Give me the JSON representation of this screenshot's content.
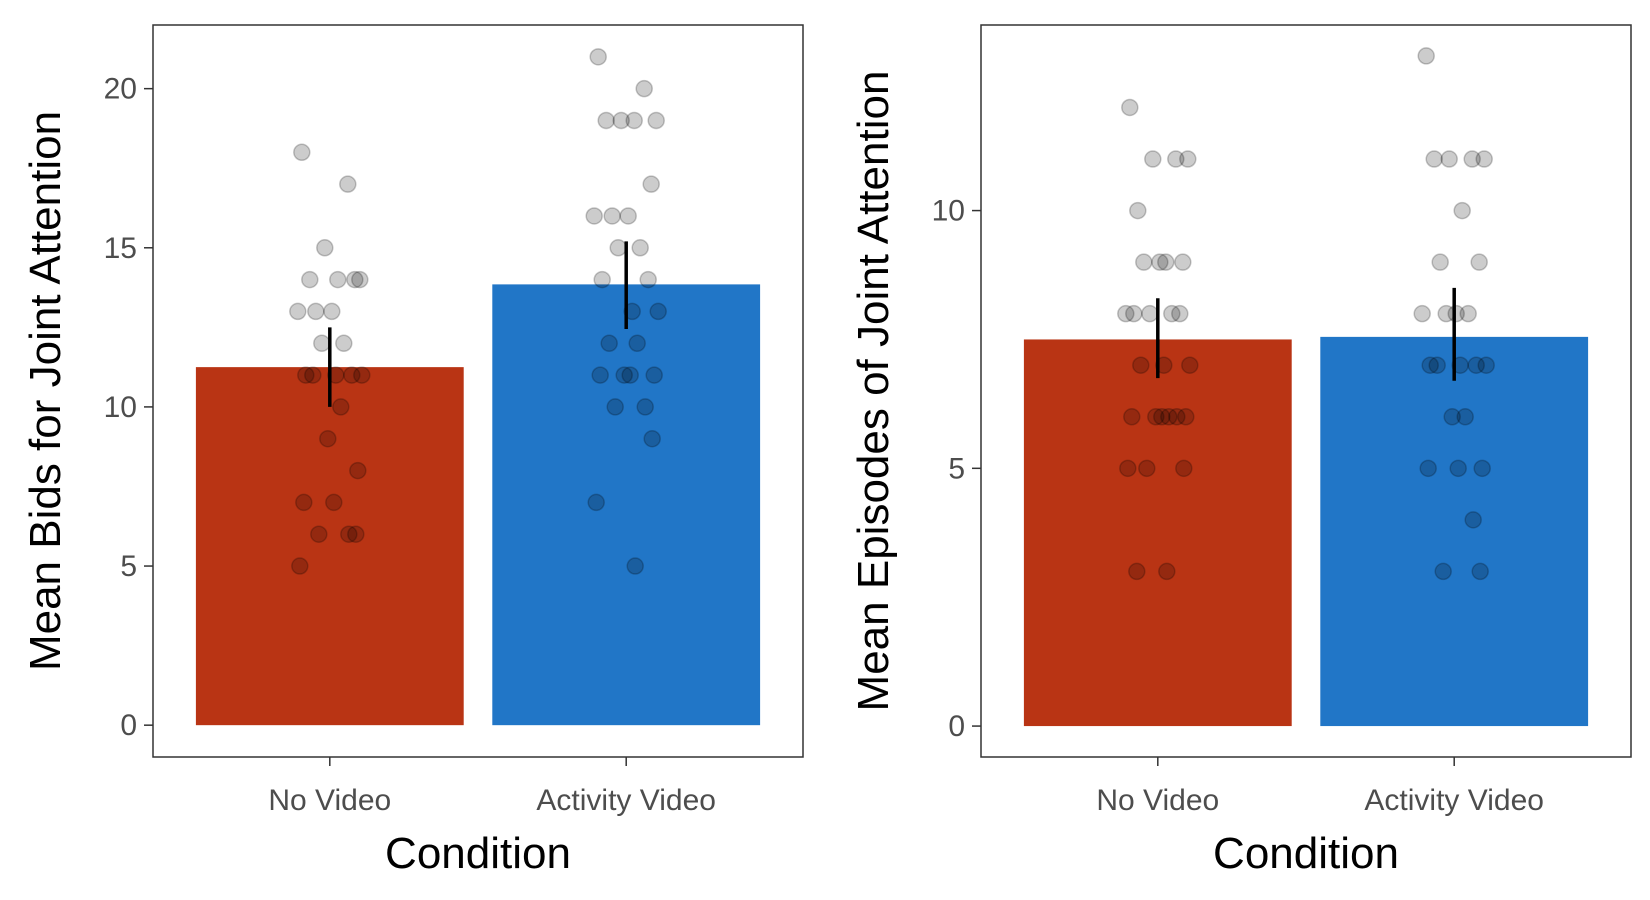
{
  "chart_data": [
    {
      "type": "bar",
      "xlabel": "Condition",
      "ylabel": "Mean Bids for Joint Attention",
      "categories": [
        "No Video",
        "Activity Video"
      ],
      "bar_colors": [
        "#b93414",
        "#2176c7"
      ],
      "values": [
        11.25,
        13.85
      ],
      "error_bars": [
        {
          "low": 10.0,
          "high": 12.5
        },
        {
          "low": 12.45,
          "high": 15.2
        }
      ],
      "yticks": [
        0,
        5,
        10,
        15,
        20
      ],
      "ytick_labels": [
        "0",
        "5",
        "10",
        "15",
        "20"
      ],
      "ylim": [
        -1,
        22
      ],
      "grid": false,
      "points": [
        {
          "category": "No Video",
          "values": [
            18,
            17,
            15,
            14,
            14,
            14,
            14,
            13,
            13,
            13,
            12,
            12,
            11,
            11,
            11,
            11,
            11,
            10,
            9,
            8,
            7,
            7,
            6,
            6,
            6,
            5
          ]
        },
        {
          "category": "Activity Video",
          "values": [
            21,
            20,
            19,
            19,
            19,
            19,
            17,
            16,
            16,
            16,
            15,
            15,
            14,
            14,
            13,
            13,
            12,
            12,
            11,
            11,
            11,
            11,
            10,
            10,
            9,
            7,
            5
          ]
        }
      ]
    },
    {
      "type": "bar",
      "xlabel": "Condition",
      "ylabel": "Mean Episodes of Joint Attention",
      "categories": [
        "No Video",
        "Activity Video"
      ],
      "bar_colors": [
        "#b93414",
        "#2176c7"
      ],
      "values": [
        7.5,
        7.55
      ],
      "error_bars": [
        {
          "low": 6.75,
          "high": 8.3
        },
        {
          "low": 6.7,
          "high": 8.5
        }
      ],
      "yticks": [
        0,
        5,
        10
      ],
      "ytick_labels": [
        "0",
        "5",
        "10"
      ],
      "ylim": [
        -0.6,
        13.6
      ],
      "grid": false,
      "points": [
        {
          "category": "No Video",
          "values": [
            12,
            11,
            11,
            11,
            10,
            9,
            9,
            9,
            9,
            8,
            8,
            8,
            8,
            8,
            7,
            7,
            7,
            6,
            6,
            6,
            6,
            6,
            6,
            5,
            5,
            5,
            3,
            3
          ]
        },
        {
          "category": "Activity Video",
          "values": [
            13,
            11,
            11,
            11,
            11,
            10,
            9,
            9,
            8,
            8,
            8,
            8,
            7,
            7,
            7,
            7,
            7,
            6,
            6,
            5,
            5,
            5,
            4,
            3,
            3
          ]
        }
      ]
    }
  ]
}
